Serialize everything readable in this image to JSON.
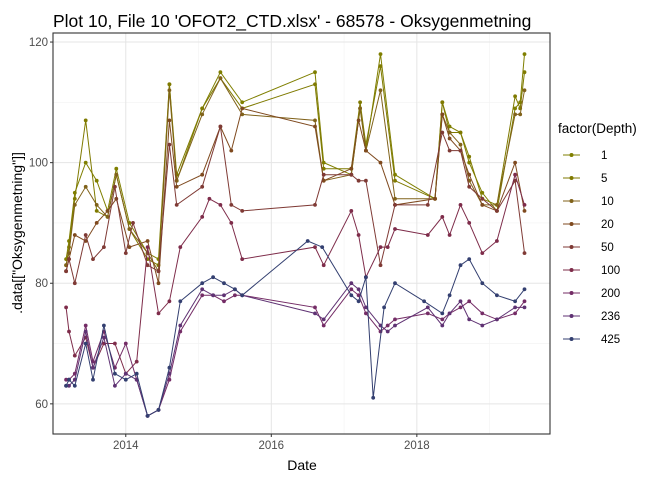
{
  "chart_data": {
    "type": "line",
    "title": "Plot 10, File 10 'OFOT2_CTD.xlsx' - 68578  -  Oksygenmetning",
    "xlabel": "Date",
    "ylabel": ".data[[\"Oksygenmetning\"]]",
    "xlim": [
      2013.0,
      2019.83
    ],
    "ylim": [
      55.0,
      121.5
    ],
    "xticks": [
      {
        "value": 2014.0,
        "label": "2014"
      },
      {
        "value": 2016.0,
        "label": "2016"
      },
      {
        "value": 2018.0,
        "label": "2018"
      }
    ],
    "yticks": [
      {
        "value": 60,
        "label": "60"
      },
      {
        "value": 80,
        "label": "80"
      },
      {
        "value": 100,
        "label": "100"
      },
      {
        "value": 120,
        "label": "120"
      }
    ],
    "grid": true,
    "markers": true,
    "legend": {
      "title": "factor(Depth)",
      "position": "right"
    },
    "series": [
      {
        "name": "1",
        "color": "#7f7f00",
        "x": [
          2013.18,
          2013.22,
          2013.3,
          2013.45,
          2013.6,
          2013.75,
          2013.87,
          2014.05,
          2014.3,
          2014.45,
          2014.6,
          2014.7,
          2015.05,
          2015.3,
          2015.6,
          2016.6,
          2016.72,
          2017.1,
          2017.22,
          2017.3,
          2017.5,
          2017.7,
          2018.25,
          2018.35,
          2018.45,
          2018.6,
          2018.72,
          2018.9,
          2019.1,
          2019.35,
          2019.42,
          2019.48
        ],
        "y": [
          84,
          87,
          95,
          100,
          97,
          92,
          99,
          90,
          85,
          84,
          113,
          97,
          109,
          115,
          110,
          115,
          100,
          98,
          109,
          102,
          118,
          98,
          94,
          110,
          106,
          105,
          100,
          95,
          92,
          109,
          110,
          118
        ]
      },
      {
        "name": "5",
        "color": "#7f7a00",
        "x": [
          2013.18,
          2013.22,
          2013.3,
          2013.45,
          2013.6,
          2013.75,
          2013.87,
          2014.05,
          2014.3,
          2014.45,
          2014.6,
          2014.7,
          2015.05,
          2015.3,
          2015.6,
          2016.6,
          2016.72,
          2017.1,
          2017.22,
          2017.3,
          2017.5,
          2017.7,
          2018.25,
          2018.35,
          2018.45,
          2018.6,
          2018.72,
          2018.9,
          2019.1,
          2019.35,
          2019.42,
          2019.48
        ],
        "y": [
          83,
          86,
          94,
          107,
          92,
          91,
          98,
          89,
          84,
          83,
          113,
          98,
          109,
          114,
          109,
          113,
          99,
          99,
          110,
          103,
          116,
          97,
          94,
          110,
          105,
          105,
          101,
          94,
          93,
          111,
          109,
          115
        ]
      },
      {
        "name": "10",
        "color": "#80621a",
        "x": [
          2013.18,
          2013.22,
          2013.3,
          2013.45,
          2013.6,
          2013.75,
          2013.87,
          2014.05,
          2014.3,
          2014.45,
          2014.6,
          2014.7,
          2015.05,
          2015.3,
          2015.6,
          2016.6,
          2016.72,
          2017.1,
          2017.22,
          2017.3,
          2017.5,
          2017.7,
          2018.25,
          2018.35,
          2018.45,
          2018.6,
          2018.72,
          2018.9,
          2019.1,
          2019.35,
          2019.42,
          2019.48
        ],
        "y": [
          83,
          85,
          93,
          96,
          93,
          91,
          98,
          89,
          85,
          82,
          112,
          97,
          108,
          114,
          108,
          107,
          97,
          98,
          109,
          102,
          112,
          94,
          94,
          108,
          105,
          103,
          97,
          93,
          93,
          108,
          108,
          112
        ]
      },
      {
        "name": "20",
        "color": "#7f4a1f",
        "x": [
          2013.18,
          2013.22,
          2013.3,
          2013.45,
          2013.6,
          2013.75,
          2013.87,
          2014.05,
          2014.3,
          2014.45,
          2014.6,
          2014.7,
          2015.05,
          2015.3,
          2015.45,
          2015.6,
          2016.6,
          2016.72,
          2017.1,
          2017.2,
          2017.3,
          2017.5,
          2017.7,
          2018.25,
          2018.35,
          2018.45,
          2018.6,
          2018.72,
          2018.9,
          2019.1,
          2019.35,
          2019.48
        ],
        "y": [
          82,
          84,
          88,
          87,
          90,
          92,
          94,
          86,
          87,
          80,
          107,
          96,
          98,
          106,
          102,
          109,
          106,
          97,
          99,
          107,
          102,
          100,
          93,
          94,
          108,
          104,
          102,
          98,
          93,
          92,
          100,
          92
        ]
      },
      {
        "name": "50",
        "color": "#7f3a35",
        "x": [
          2013.18,
          2013.22,
          2013.3,
          2013.45,
          2013.55,
          2013.7,
          2013.85,
          2014.0,
          2014.1,
          2014.3,
          2014.45,
          2014.6,
          2014.7,
          2015.05,
          2015.3,
          2015.45,
          2015.6,
          2016.6,
          2016.72,
          2017.1,
          2017.2,
          2017.3,
          2017.5,
          2017.7,
          2018.15,
          2018.35,
          2018.45,
          2018.6,
          2018.72,
          2018.9,
          2019.1,
          2019.35,
          2019.48
        ],
        "y": [
          82,
          84,
          80,
          88,
          84,
          86,
          96,
          85,
          90,
          83,
          82,
          103,
          93,
          96,
          106,
          93,
          92,
          93,
          98,
          98,
          97,
          97,
          83,
          93,
          93,
          105,
          102,
          102,
          96,
          94,
          92,
          97,
          85
        ]
      },
      {
        "name": "100",
        "color": "#7e2c4a",
        "x": [
          2013.18,
          2013.22,
          2013.3,
          2013.45,
          2013.55,
          2013.7,
          2013.85,
          2014.0,
          2014.15,
          2014.3,
          2014.45,
          2014.6,
          2014.75,
          2015.05,
          2015.15,
          2015.3,
          2015.45,
          2015.6,
          2016.6,
          2016.72,
          2017.1,
          2017.2,
          2017.3,
          2017.5,
          2017.6,
          2017.7,
          2018.15,
          2018.35,
          2018.45,
          2018.6,
          2018.72,
          2018.9,
          2019.1,
          2019.35,
          2019.48
        ],
        "y": [
          76,
          72,
          68,
          71,
          66,
          70,
          70,
          65,
          67,
          86,
          75,
          77,
          86,
          91,
          94,
          93,
          90,
          84,
          86,
          83,
          92,
          88,
          81,
          86,
          86,
          89,
          88,
          91,
          88,
          93,
          90,
          85,
          87,
          98,
          93
        ]
      },
      {
        "name": "200",
        "color": "#742c66",
        "x": [
          2013.18,
          2013.22,
          2013.3,
          2013.45,
          2013.55,
          2013.7,
          2013.85,
          2014.0,
          2014.15,
          2014.3,
          2014.45,
          2014.6,
          2014.75,
          2015.05,
          2015.2,
          2015.35,
          2015.5,
          2015.6,
          2016.6,
          2016.72,
          2017.1,
          2017.2,
          2017.3,
          2017.5,
          2017.6,
          2017.7,
          2018.15,
          2018.35,
          2018.45,
          2018.6,
          2018.72,
          2018.9,
          2019.1,
          2019.35,
          2019.48
        ],
        "y": [
          64,
          64,
          65,
          73,
          67,
          72,
          66,
          70,
          64,
          58,
          59,
          64,
          72,
          78,
          78,
          77,
          78,
          78,
          76,
          73,
          79,
          78,
          75,
          72,
          73,
          74,
          75,
          74,
          75,
          76,
          77,
          75,
          74,
          75,
          77
        ]
      },
      {
        "name": "236",
        "color": "#5f3273",
        "x": [
          2013.18,
          2013.22,
          2013.3,
          2013.45,
          2013.55,
          2013.7,
          2013.85,
          2014.0,
          2014.15,
          2014.3,
          2014.45,
          2014.6,
          2014.75,
          2015.05,
          2015.2,
          2015.35,
          2015.5,
          2015.6,
          2016.6,
          2016.72,
          2017.1,
          2017.2,
          2017.3,
          2017.5,
          2017.6,
          2017.7,
          2018.15,
          2018.35,
          2018.45,
          2018.6,
          2018.72,
          2018.9,
          2019.1,
          2019.35,
          2019.48
        ],
        "y": [
          63,
          63,
          64,
          72,
          66,
          71,
          63,
          65,
          64,
          58,
          59,
          65,
          73,
          79,
          78,
          78,
          79,
          78,
          75,
          74,
          80,
          79,
          76,
          73,
          72,
          73,
          76,
          73,
          75,
          77,
          74,
          73,
          74,
          76,
          76
        ]
      },
      {
        "name": "425",
        "color": "#333f70",
        "x": [
          2013.18,
          2013.22,
          2013.3,
          2013.45,
          2013.55,
          2013.7,
          2013.85,
          2014.0,
          2014.15,
          2014.3,
          2014.45,
          2014.6,
          2014.75,
          2015.05,
          2015.2,
          2015.35,
          2015.5,
          2015.6,
          2016.5,
          2016.7,
          2017.1,
          2017.2,
          2017.3,
          2017.4,
          2017.55,
          2017.7,
          2018.1,
          2018.35,
          2018.45,
          2018.6,
          2018.72,
          2018.9,
          2019.1,
          2019.35,
          2019.48
        ],
        "y": [
          63,
          64,
          63,
          70,
          64,
          73,
          65,
          64,
          65,
          58,
          59,
          66,
          77,
          80,
          81,
          80,
          79,
          78,
          87,
          86,
          78,
          77,
          81,
          61,
          76,
          80,
          77,
          75,
          78,
          83,
          84,
          80,
          78,
          77,
          79
        ]
      }
    ]
  }
}
